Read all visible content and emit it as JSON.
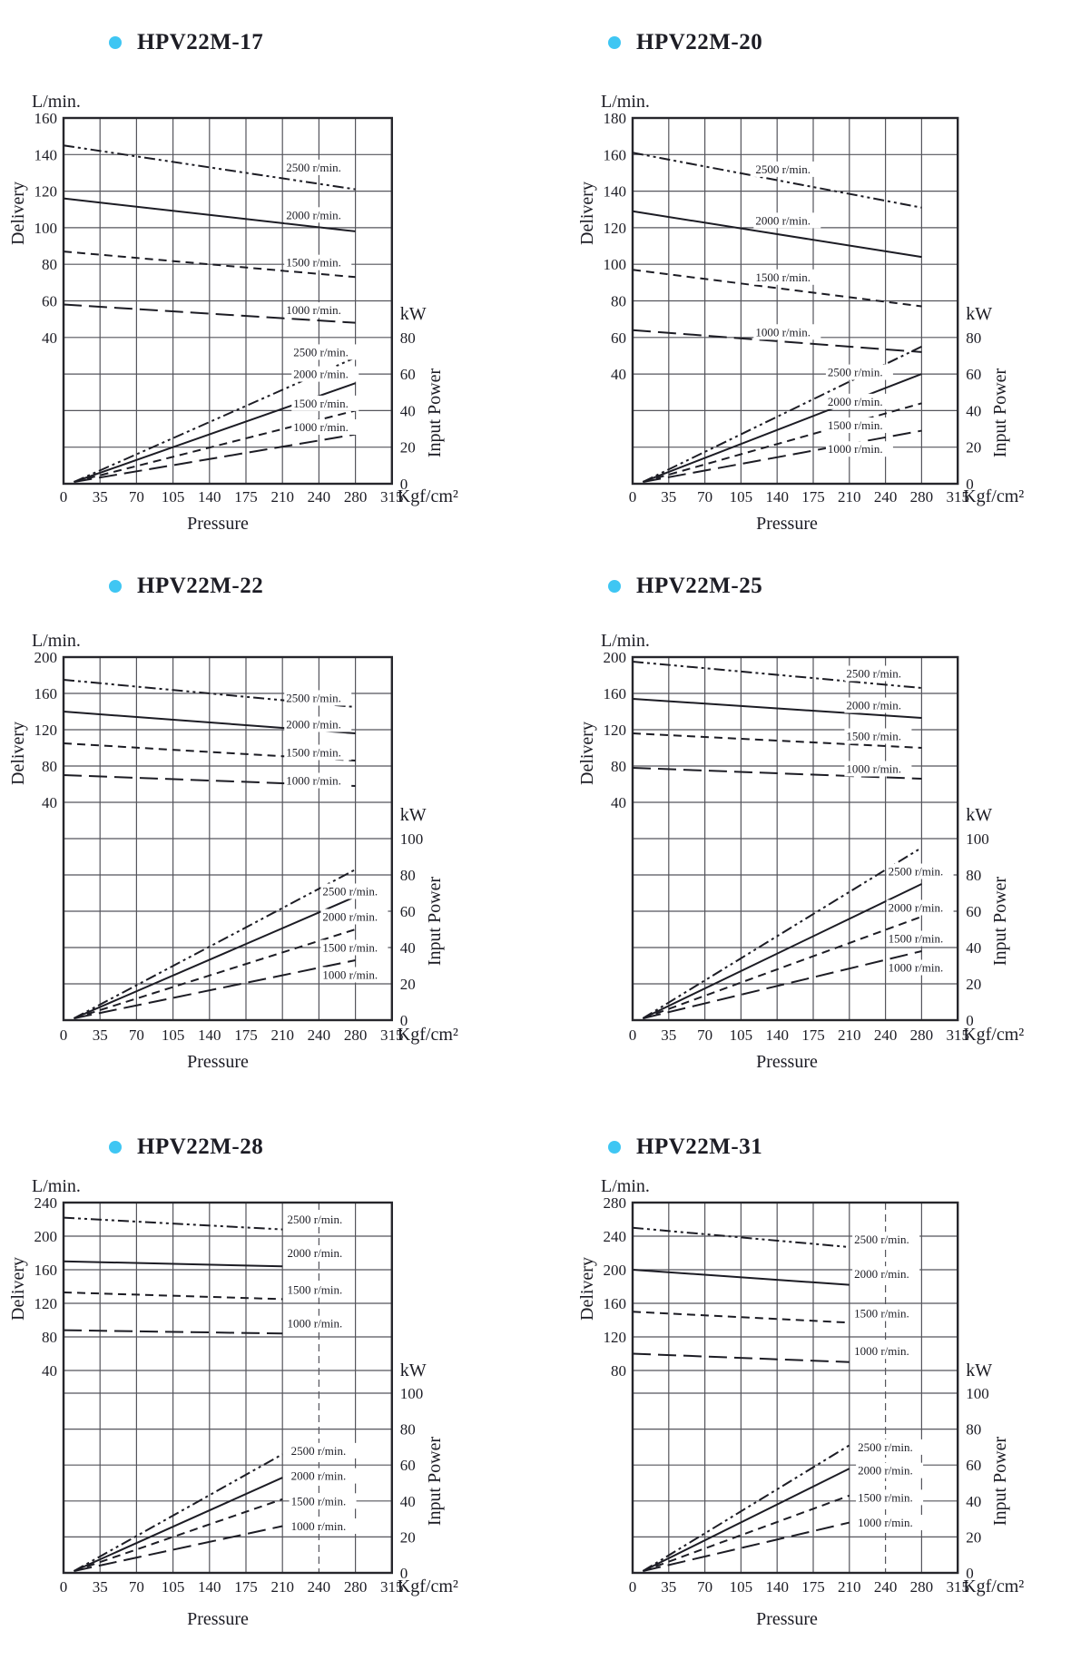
{
  "page": {
    "background": "#ffffff",
    "ink_color": "#1c1c24",
    "grid_color": "#55555c",
    "bullet_color": "#3fc6f3"
  },
  "labels": {
    "delivery_unit": "L/min.",
    "delivery_axis": "Delivery",
    "power_unit": "kW",
    "power_axis": "Input Power",
    "pressure_unit": "Kgf/cm²",
    "pressure_axis": "Pressure"
  },
  "chart_data": {
    "type": "line",
    "x_ticks": [
      0,
      35,
      70,
      105,
      140,
      175,
      210,
      240,
      280,
      315
    ],
    "xlabel": "Pressure",
    "x_unit": "Kgf/cm²",
    "series_names": [
      "2500 r/min.",
      "2000 r/min.",
      "1500 r/min.",
      "1000 r/min."
    ],
    "charts": [
      {
        "title": "HPV22M-17",
        "delivery_axis": {
          "unit": "L/min.",
          "label": "Delivery",
          "ticks": [
            160,
            140,
            120,
            100,
            80,
            60,
            40
          ]
        },
        "power_axis": {
          "unit": "kW",
          "label": "Input Power",
          "ticks": [
            80,
            60,
            40,
            20,
            0
          ]
        },
        "pressure_range": [
          0,
          280
        ],
        "delivery_series": [
          {
            "name": "2500 r/min.",
            "values": [
              [
                0,
                145
              ],
              [
                280,
                121
              ]
            ]
          },
          {
            "name": "2000 r/min.",
            "values": [
              [
                0,
                116
              ],
              [
                280,
                98
              ]
            ]
          },
          {
            "name": "1500 r/min.",
            "values": [
              [
                0,
                87
              ],
              [
                280,
                73
              ]
            ]
          },
          {
            "name": "1000 r/min.",
            "values": [
              [
                0,
                58
              ],
              [
                280,
                48
              ]
            ]
          }
        ],
        "power_series": [
          {
            "name": "2500 r/min.",
            "values": [
              [
                10,
                1
              ],
              [
                280,
                69
              ]
            ]
          },
          {
            "name": "2000 r/min.",
            "values": [
              [
                10,
                1
              ],
              [
                280,
                55
              ]
            ]
          },
          {
            "name": "1500 r/min.",
            "values": [
              [
                10,
                1
              ],
              [
                280,
                40
              ]
            ]
          },
          {
            "name": "1000 r/min.",
            "values": [
              [
                10,
                1
              ],
              [
                280,
                27
              ]
            ]
          }
        ],
        "label_anchors": {
          "delivery_x": 213,
          "delivery_v": [
            133,
            107,
            81,
            55
          ],
          "power_x": 219,
          "power_kw": [
            72,
            60,
            44,
            31
          ]
        },
        "dashed_grid_col": null
      },
      {
        "title": "HPV22M-20",
        "delivery_axis": {
          "unit": "L/min.",
          "label": "Delivery",
          "ticks": [
            180,
            160,
            140,
            120,
            100,
            80,
            60,
            40
          ]
        },
        "power_axis": {
          "unit": "kW",
          "label": "Input Power",
          "ticks": [
            80,
            60,
            40,
            20,
            0
          ]
        },
        "pressure_range": [
          0,
          280
        ],
        "delivery_series": [
          {
            "name": "2500 r/min.",
            "values": [
              [
                0,
                161
              ],
              [
                280,
                131
              ]
            ]
          },
          {
            "name": "2000 r/min.",
            "values": [
              [
                0,
                129
              ],
              [
                280,
                104
              ]
            ]
          },
          {
            "name": "1500 r/min.",
            "values": [
              [
                0,
                97
              ],
              [
                280,
                77
              ]
            ]
          },
          {
            "name": "1000 r/min.",
            "values": [
              [
                0,
                64
              ],
              [
                280,
                52
              ]
            ]
          }
        ],
        "power_series": [
          {
            "name": "2500 r/min.",
            "values": [
              [
                10,
                1
              ],
              [
                280,
                75
              ]
            ]
          },
          {
            "name": "2000 r/min.",
            "values": [
              [
                10,
                1
              ],
              [
                280,
                60
              ]
            ]
          },
          {
            "name": "1500 r/min.",
            "values": [
              [
                10,
                1
              ],
              [
                280,
                44
              ]
            ]
          },
          {
            "name": "1000 r/min.",
            "values": [
              [
                10,
                1
              ],
              [
                280,
                29
              ]
            ]
          }
        ],
        "label_anchors": {
          "delivery_x": 119,
          "delivery_v": [
            152,
            124,
            93,
            63
          ],
          "power_x": 189,
          "power_kw": [
            61,
            45,
            32,
            19
          ]
        },
        "dashed_grid_col": null
      },
      {
        "title": "HPV22M-22",
        "delivery_axis": {
          "unit": "L/min.",
          "label": "Delivery",
          "ticks": [
            200,
            160,
            120,
            80,
            40
          ]
        },
        "power_axis": {
          "unit": "kW",
          "label": "Input Power",
          "ticks": [
            100,
            80,
            60,
            40,
            20,
            0
          ]
        },
        "pressure_range": [
          0,
          280
        ],
        "delivery_series": [
          {
            "name": "2500 r/min.",
            "values": [
              [
                0,
                175
              ],
              [
                280,
                145
              ]
            ]
          },
          {
            "name": "2000 r/min.",
            "values": [
              [
                0,
                140
              ],
              [
                280,
                116
              ]
            ]
          },
          {
            "name": "1500 r/min.",
            "values": [
              [
                0,
                105
              ],
              [
                280,
                86
              ]
            ]
          },
          {
            "name": "1000 r/min.",
            "values": [
              [
                0,
                70
              ],
              [
                280,
                58
              ]
            ]
          }
        ],
        "power_series": [
          {
            "name": "2500 r/min.",
            "values": [
              [
                10,
                1
              ],
              [
                280,
                83
              ]
            ]
          },
          {
            "name": "2000 r/min.",
            "values": [
              [
                10,
                1
              ],
              [
                280,
                68
              ]
            ]
          },
          {
            "name": "1500 r/min.",
            "values": [
              [
                10,
                1
              ],
              [
                280,
                50
              ]
            ]
          },
          {
            "name": "1000 r/min.",
            "values": [
              [
                10,
                1
              ],
              [
                280,
                33
              ]
            ]
          }
        ],
        "label_anchors": {
          "delivery_x": 213,
          "delivery_v": [
            155,
            126,
            95,
            64
          ],
          "power_x": 244,
          "power_kw": [
            71,
            57,
            40,
            25
          ]
        },
        "dashed_grid_col": null
      },
      {
        "title": "HPV22M-25",
        "delivery_axis": {
          "unit": "L/min.",
          "label": "Delivery",
          "ticks": [
            200,
            160,
            120,
            80,
            40
          ]
        },
        "power_axis": {
          "unit": "kW",
          "label": "Input Power",
          "ticks": [
            100,
            80,
            60,
            40,
            20,
            0
          ]
        },
        "pressure_range": [
          0,
          280
        ],
        "delivery_series": [
          {
            "name": "2500 r/min.",
            "values": [
              [
                0,
                195
              ],
              [
                280,
                166
              ]
            ]
          },
          {
            "name": "2000 r/min.",
            "values": [
              [
                0,
                154
              ],
              [
                280,
                133
              ]
            ]
          },
          {
            "name": "1500 r/min.",
            "values": [
              [
                0,
                116
              ],
              [
                280,
                100
              ]
            ]
          },
          {
            "name": "1000 r/min.",
            "values": [
              [
                0,
                78
              ],
              [
                280,
                66
              ]
            ]
          }
        ],
        "power_series": [
          {
            "name": "2500 r/min.",
            "values": [
              [
                10,
                1
              ],
              [
                280,
                95
              ]
            ]
          },
          {
            "name": "2000 r/min.",
            "values": [
              [
                10,
                1
              ],
              [
                280,
                75
              ]
            ]
          },
          {
            "name": "1500 r/min.",
            "values": [
              [
                10,
                1
              ],
              [
                280,
                57
              ]
            ]
          },
          {
            "name": "1000 r/min.",
            "values": [
              [
                10,
                1
              ],
              [
                280,
                38
              ]
            ]
          }
        ],
        "label_anchors": {
          "delivery_x": 207,
          "delivery_v": [
            182,
            147,
            113,
            77
          ],
          "power_x": 243,
          "power_kw": [
            82,
            62,
            45,
            29
          ]
        },
        "dashed_grid_col": null
      },
      {
        "title": "HPV22M-28",
        "delivery_axis": {
          "unit": "L/min.",
          "label": "Delivery",
          "ticks": [
            240,
            200,
            160,
            120,
            80,
            40
          ]
        },
        "power_axis": {
          "unit": "kW",
          "label": "Input Power",
          "ticks": [
            100,
            80,
            60,
            40,
            20,
            0
          ]
        },
        "pressure_range": [
          0,
          210
        ],
        "delivery_series": [
          {
            "name": "2500 r/min.",
            "values": [
              [
                0,
                222
              ],
              [
                210,
                208
              ]
            ]
          },
          {
            "name": "2000 r/min.",
            "values": [
              [
                0,
                170
              ],
              [
                210,
                164
              ]
            ]
          },
          {
            "name": "1500 r/min.",
            "values": [
              [
                0,
                133
              ],
              [
                210,
                125
              ]
            ]
          },
          {
            "name": "1000 r/min.",
            "values": [
              [
                0,
                88
              ],
              [
                210,
                84
              ]
            ]
          }
        ],
        "power_series": [
          {
            "name": "2500 r/min.",
            "values": [
              [
                10,
                1
              ],
              [
                210,
                66
              ]
            ]
          },
          {
            "name": "2000 r/min.",
            "values": [
              [
                10,
                1
              ],
              [
                210,
                53
              ]
            ]
          },
          {
            "name": "1500 r/min.",
            "values": [
              [
                10,
                1
              ],
              [
                210,
                41
              ]
            ]
          },
          {
            "name": "1000 r/min.",
            "values": [
              [
                10,
                1
              ],
              [
                210,
                26
              ]
            ]
          }
        ],
        "label_anchors": {
          "delivery_x": 214,
          "delivery_v": [
            220,
            180,
            136,
            96
          ],
          "power_x": 217,
          "power_kw": [
            68,
            54,
            40,
            26
          ]
        },
        "dashed_grid_col": 240
      },
      {
        "title": "HPV22M-31",
        "delivery_axis": {
          "unit": "L/min.",
          "label": "Delivery",
          "ticks": [
            280,
            240,
            200,
            160,
            120,
            80
          ]
        },
        "power_axis": {
          "unit": "kW",
          "label": "Input Power",
          "ticks": [
            100,
            80,
            60,
            40,
            20,
            0
          ]
        },
        "pressure_range": [
          0,
          210
        ],
        "delivery_series": [
          {
            "name": "2500 r/min.",
            "values": [
              [
                0,
                250
              ],
              [
                210,
                227
              ]
            ]
          },
          {
            "name": "2000 r/min.",
            "values": [
              [
                0,
                200
              ],
              [
                210,
                182
              ]
            ]
          },
          {
            "name": "1500 r/min.",
            "values": [
              [
                0,
                150
              ],
              [
                210,
                137
              ]
            ]
          },
          {
            "name": "1000 r/min.",
            "values": [
              [
                0,
                100
              ],
              [
                210,
                90
              ]
            ]
          }
        ],
        "power_series": [
          {
            "name": "2500 r/min.",
            "values": [
              [
                10,
                1
              ],
              [
                210,
                71
              ]
            ]
          },
          {
            "name": "2000 r/min.",
            "values": [
              [
                10,
                1
              ],
              [
                210,
                58
              ]
            ]
          },
          {
            "name": "1500 r/min.",
            "values": [
              [
                10,
                1
              ],
              [
                210,
                43
              ]
            ]
          },
          {
            "name": "1000 r/min.",
            "values": [
              [
                10,
                1
              ],
              [
                210,
                28
              ]
            ]
          }
        ],
        "label_anchors": {
          "delivery_x": 214,
          "delivery_v": [
            236,
            195,
            148,
            103
          ],
          "power_x": 217,
          "power_kw": [
            70,
            57,
            42,
            28
          ]
        },
        "dashed_grid_col": 240
      }
    ]
  }
}
